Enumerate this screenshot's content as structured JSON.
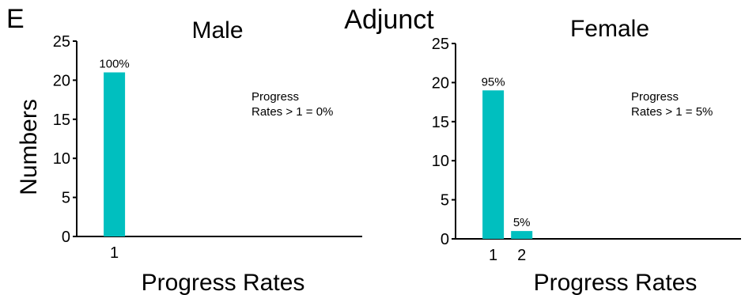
{
  "panel_label": "E",
  "figure_title": "Adjunct",
  "ylabel": "Numbers",
  "bar_color": "#00BFBF",
  "chart_data": [
    {
      "type": "bar",
      "title": "Male",
      "xlabel": "Progress Rates",
      "ylabel": "Numbers",
      "ylim": [
        0,
        25
      ],
      "yticks": [
        0,
        5,
        10,
        15,
        20,
        25
      ],
      "xlim": [
        0,
        10
      ],
      "categories": [
        1
      ],
      "values": [
        21
      ],
      "bar_labels": [
        "100%"
      ],
      "annotation": [
        "Progress",
        "Rates > 1 = 0%"
      ],
      "grid": false
    },
    {
      "type": "bar",
      "title": "Female",
      "xlabel": "Progress Rates",
      "ylabel": "",
      "ylim": [
        0,
        25
      ],
      "yticks": [
        0,
        5,
        10,
        15,
        20,
        25
      ],
      "xlim": [
        0,
        10
      ],
      "categories": [
        1,
        2
      ],
      "values": [
        19,
        1
      ],
      "bar_labels": [
        "95%",
        "5%"
      ],
      "annotation": [
        "Progress",
        "Rates > 1 = 5%"
      ],
      "grid": false
    }
  ]
}
